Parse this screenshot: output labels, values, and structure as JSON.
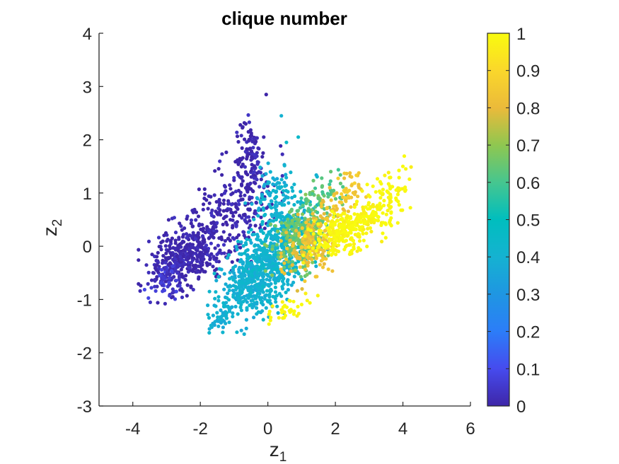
{
  "chart_data": {
    "type": "scatter",
    "title": "clique number",
    "xlabel": {
      "main": "z",
      "sub": "1"
    },
    "ylabel": {
      "main": "z",
      "sub": "2"
    },
    "xlim": [
      -5,
      6
    ],
    "ylim": [
      -3,
      4
    ],
    "xticks": [
      -4,
      -2,
      0,
      2,
      4,
      6
    ],
    "yticks": [
      -3,
      -2,
      -1,
      0,
      1,
      2,
      3,
      4
    ],
    "grid": false,
    "colorbar": {
      "range": [
        0,
        1
      ],
      "ticks": [
        "0",
        "0.1",
        "0.2",
        "0.3",
        "0.4",
        "0.5",
        "0.6",
        "0.7",
        "0.8",
        "0.9",
        "1"
      ],
      "colormap": "parula",
      "placement": "right"
    },
    "clusters": [
      {
        "value": 0.0,
        "n": 420,
        "center": [
          -2.4,
          -0.15
        ],
        "spread": [
          0.55,
          0.3
        ]
      },
      {
        "value": 0.0,
        "n": 210,
        "center": [
          -1.0,
          0.65
        ],
        "spread": [
          0.55,
          0.45
        ]
      },
      {
        "value": 0.0,
        "n": 110,
        "center": [
          -0.55,
          1.65
        ],
        "spread": [
          0.22,
          0.42
        ]
      },
      {
        "value": 0.05,
        "n": 60,
        "center": [
          -3.0,
          -0.6
        ],
        "spread": [
          0.25,
          0.18
        ]
      },
      {
        "value": 0.4,
        "n": 520,
        "center": [
          -0.3,
          -0.55
        ],
        "spread": [
          0.55,
          0.35
        ]
      },
      {
        "value": 0.42,
        "n": 380,
        "center": [
          0.45,
          0.05
        ],
        "spread": [
          0.55,
          0.4
        ]
      },
      {
        "value": 0.4,
        "n": 90,
        "center": [
          0.2,
          0.95
        ],
        "spread": [
          0.3,
          0.3
        ]
      },
      {
        "value": 0.4,
        "n": 45,
        "center": [
          -1.35,
          -1.3
        ],
        "spread": [
          0.25,
          0.15
        ]
      },
      {
        "value": 0.65,
        "n": 260,
        "center": [
          0.95,
          0.15
        ],
        "spread": [
          0.4,
          0.3
        ]
      },
      {
        "value": 0.62,
        "n": 50,
        "center": [
          1.6,
          0.9
        ],
        "spread": [
          0.35,
          0.25
        ]
      },
      {
        "value": 0.82,
        "n": 160,
        "center": [
          1.3,
          0.05
        ],
        "spread": [
          0.35,
          0.3
        ]
      },
      {
        "value": 0.85,
        "n": 60,
        "center": [
          2.3,
          0.95
        ],
        "spread": [
          0.3,
          0.2
        ]
      },
      {
        "value": 1.0,
        "n": 320,
        "center": [
          2.35,
          0.3
        ],
        "spread": [
          0.5,
          0.18
        ]
      },
      {
        "value": 1.0,
        "n": 90,
        "center": [
          3.5,
          0.9
        ],
        "spread": [
          0.35,
          0.3
        ]
      },
      {
        "value": 1.0,
        "n": 35,
        "center": [
          0.7,
          -1.15
        ],
        "spread": [
          0.3,
          0.12
        ]
      }
    ],
    "outliers": [
      {
        "x": 0.4,
        "y": 2.45,
        "value": 0.4
      },
      {
        "x": -0.05,
        "y": 2.85,
        "value": 0.0
      },
      {
        "x": 0.9,
        "y": 2.05,
        "value": 0.45
      },
      {
        "x": 4.0,
        "y": 1.5,
        "value": 1.0
      },
      {
        "x": 0.55,
        "y": 1.95,
        "value": 0.45
      },
      {
        "x": -0.7,
        "y": -1.65,
        "value": 0.4
      }
    ]
  }
}
